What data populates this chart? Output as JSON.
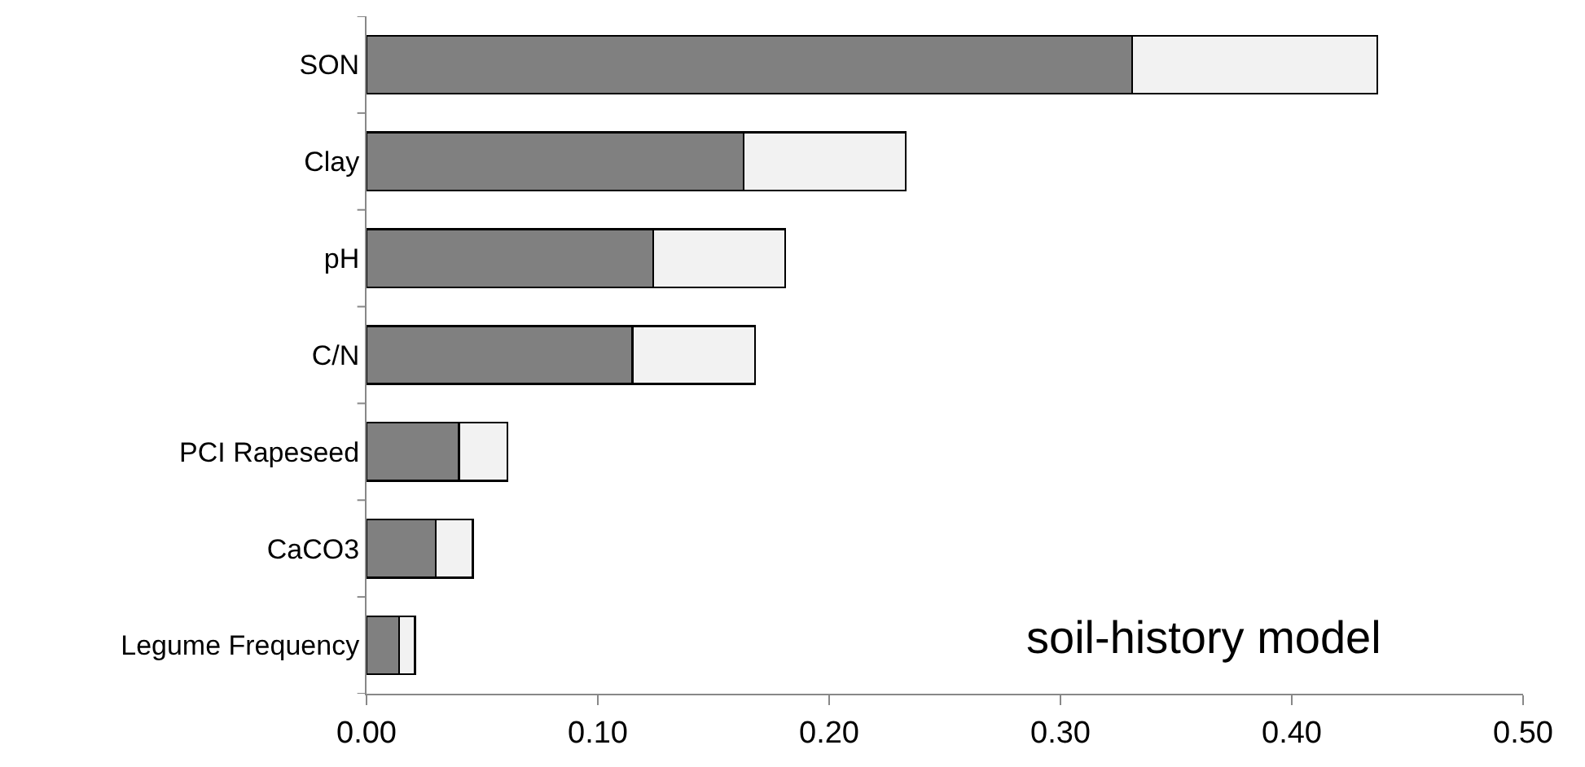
{
  "chart_data": {
    "type": "bar",
    "orientation": "horizontal",
    "stacked": true,
    "categories": [
      "SON",
      "Clay",
      "pH",
      "C/N",
      "PCI Rapeseed",
      "CaCO3",
      "Legume Frequency"
    ],
    "series": [
      {
        "color": "#808080",
        "values": [
          0.331,
          0.163,
          0.124,
          0.115,
          0.04,
          0.03,
          0.014
        ]
      },
      {
        "color": "#f2f2f2",
        "values": [
          0.106,
          0.07,
          0.057,
          0.053,
          0.021,
          0.016,
          0.007
        ]
      }
    ],
    "xlim": [
      0,
      0.5
    ],
    "xticks": [
      {
        "value": 0,
        "label": "0.00"
      },
      {
        "value": 0.1,
        "label": "0.10"
      },
      {
        "value": 0.2,
        "label": "0.20"
      },
      {
        "value": 0.3,
        "label": "0.30"
      },
      {
        "value": 0.4,
        "label": "0.40"
      },
      {
        "value": 0.5,
        "label": "0.50"
      }
    ],
    "annotations": [
      "soil-history model"
    ]
  }
}
